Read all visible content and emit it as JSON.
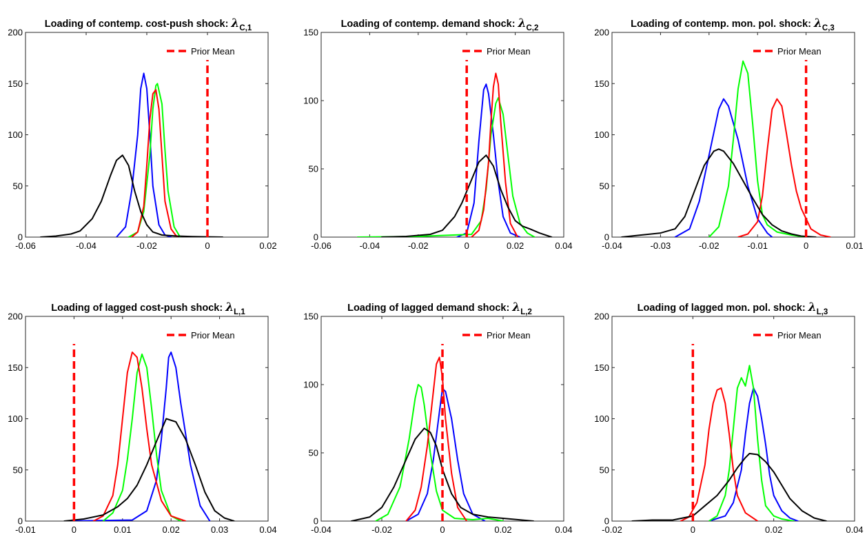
{
  "chart_data": [
    {
      "type": "line",
      "title": "Loading of contemp. cost-push shock: ",
      "title_symbol": "λ",
      "title_subscript": "C,1",
      "xlim": [
        -0.06,
        0.02
      ],
      "ylim": [
        0,
        200
      ],
      "xticks": [
        -0.06,
        -0.04,
        -0.02,
        0,
        0.02
      ],
      "yticks": [
        0,
        50,
        100,
        150,
        200
      ],
      "xtick_labels": [
        "-0.06",
        "-0.04",
        "-0.02",
        "0",
        "0.02"
      ],
      "ytick_labels": [
        "0",
        "50",
        "100",
        "150",
        "200"
      ],
      "legend": {
        "label": "Prior Mean",
        "placement": "top-right"
      },
      "prior_mean": {
        "x": 0,
        "color": "#ff0000",
        "style": "dashed"
      },
      "series": [
        {
          "color": "#0000ff",
          "x": [
            -0.03,
            -0.027,
            -0.025,
            -0.023,
            -0.022,
            -0.021,
            -0.02,
            -0.019,
            -0.018,
            -0.016,
            -0.014,
            -0.012
          ],
          "y": [
            0,
            10,
            45,
            100,
            145,
            160,
            145,
            100,
            50,
            12,
            2,
            0
          ]
        },
        {
          "color": "#00ff00",
          "x": [
            -0.026,
            -0.023,
            -0.021,
            -0.019,
            -0.018,
            -0.017,
            -0.0165,
            -0.015,
            -0.014,
            -0.013,
            -0.011,
            -0.009
          ],
          "y": [
            0,
            5,
            25,
            80,
            125,
            148,
            150,
            130,
            85,
            45,
            10,
            0
          ]
        },
        {
          "color": "#ff0000",
          "x": [
            -0.025,
            -0.023,
            -0.021,
            -0.02,
            -0.019,
            -0.018,
            -0.017,
            -0.016,
            -0.015,
            -0.014,
            -0.012,
            -0.01
          ],
          "y": [
            0,
            5,
            30,
            70,
            115,
            140,
            144,
            125,
            80,
            35,
            8,
            0
          ]
        },
        {
          "color": "#000000",
          "x": [
            -0.055,
            -0.05,
            -0.045,
            -0.042,
            -0.038,
            -0.035,
            -0.032,
            -0.03,
            -0.028,
            -0.026,
            -0.024,
            -0.022,
            -0.02,
            -0.018,
            -0.015,
            -0.01,
            -0.005,
            0.005
          ],
          "y": [
            0,
            1,
            3,
            6,
            18,
            35,
            60,
            75,
            80,
            70,
            45,
            25,
            12,
            5,
            2,
            1,
            0.5,
            0
          ]
        }
      ]
    },
    {
      "type": "line",
      "title": "Loading of contemp. demand shock: ",
      "title_symbol": "λ",
      "title_subscript": "C,2",
      "xlim": [
        -0.06,
        0.04
      ],
      "ylim": [
        0,
        150
      ],
      "xticks": [
        -0.06,
        -0.04,
        -0.02,
        0,
        0.02,
        0.04
      ],
      "yticks": [
        0,
        50,
        100,
        150
      ],
      "xtick_labels": [
        "-0.06",
        "-0.04",
        "-0.02",
        "0",
        "0.02",
        "0.04"
      ],
      "ytick_labels": [
        "0",
        "50",
        "100",
        "150"
      ],
      "legend": {
        "label": "Prior Mean",
        "placement": "top-right"
      },
      "prior_mean": {
        "x": 0,
        "color": "#ff0000",
        "style": "dashed"
      },
      "series": [
        {
          "color": "#0000ff",
          "x": [
            -0.004,
            0.0,
            0.003,
            0.005,
            0.007,
            0.008,
            0.009,
            0.011,
            0.013,
            0.015,
            0.018,
            0.022
          ],
          "y": [
            0,
            3,
            25,
            70,
            108,
            112,
            105,
            75,
            40,
            15,
            3,
            0
          ]
        },
        {
          "color": "#00ff00",
          "x": [
            -0.045,
            -0.02,
            0.002,
            0.006,
            0.008,
            0.01,
            0.012,
            0.013,
            0.015,
            0.017,
            0.019,
            0.022,
            0.025,
            0.028
          ],
          "y": [
            0,
            0.5,
            2,
            12,
            35,
            75,
            98,
            102,
            90,
            60,
            30,
            10,
            3,
            0
          ]
        },
        {
          "color": "#ff0000",
          "x": [
            0.002,
            0.005,
            0.007,
            0.009,
            0.01,
            0.011,
            0.012,
            0.013,
            0.014,
            0.016,
            0.018,
            0.021
          ],
          "y": [
            0,
            5,
            20,
            55,
            85,
            110,
            120,
            112,
            85,
            40,
            10,
            0
          ]
        },
        {
          "color": "#000000",
          "x": [
            -0.035,
            -0.025,
            -0.015,
            -0.01,
            -0.005,
            -0.002,
            0.002,
            0.005,
            0.008,
            0.011,
            0.014,
            0.017,
            0.02,
            0.023,
            0.026,
            0.03,
            0.035
          ],
          "y": [
            0,
            0.5,
            2,
            5,
            15,
            25,
            42,
            55,
            60,
            52,
            35,
            22,
            12,
            8,
            6,
            3,
            0
          ]
        }
      ]
    },
    {
      "type": "line",
      "title": "Loading of contemp. mon. pol. shock: ",
      "title_symbol": "λ",
      "title_subscript": "C,3",
      "xlim": [
        -0.04,
        0.01
      ],
      "ylim": [
        0,
        200
      ],
      "xticks": [
        -0.04,
        -0.03,
        -0.02,
        -0.01,
        0,
        0.01
      ],
      "yticks": [
        0,
        50,
        100,
        150,
        200
      ],
      "xtick_labels": [
        "-0.04",
        "-0.03",
        "-0.02",
        "-0.01",
        "0",
        "0.01"
      ],
      "ytick_labels": [
        "0",
        "50",
        "100",
        "150",
        "200"
      ],
      "legend": {
        "label": "Prior Mean",
        "placement": "top-right"
      },
      "prior_mean": {
        "x": 0,
        "color": "#ff0000",
        "style": "dashed"
      },
      "series": [
        {
          "color": "#0000ff",
          "x": [
            -0.027,
            -0.024,
            -0.022,
            -0.02,
            -0.018,
            -0.017,
            -0.016,
            -0.014,
            -0.012,
            -0.01,
            -0.008,
            -0.007
          ],
          "y": [
            0,
            8,
            35,
            80,
            125,
            135,
            128,
            95,
            50,
            18,
            4,
            0
          ]
        },
        {
          "color": "#00ff00",
          "x": [
            -0.02,
            -0.018,
            -0.016,
            -0.015,
            -0.014,
            -0.013,
            -0.012,
            -0.011,
            -0.01,
            -0.009,
            -0.008,
            -0.006,
            -0.003,
            0.0
          ],
          "y": [
            0,
            10,
            50,
            95,
            145,
            172,
            160,
            110,
            55,
            22,
            12,
            5,
            2,
            0
          ]
        },
        {
          "color": "#ff0000",
          "x": [
            -0.014,
            -0.012,
            -0.01,
            -0.009,
            -0.008,
            -0.007,
            -0.006,
            -0.005,
            -0.004,
            -0.003,
            -0.002,
            -0.001,
            0.001,
            0.003,
            0.005
          ],
          "y": [
            0,
            3,
            15,
            40,
            85,
            125,
            135,
            128,
            100,
            70,
            45,
            28,
            8,
            2,
            0
          ]
        },
        {
          "color": "#000000",
          "x": [
            -0.038,
            -0.034,
            -0.03,
            -0.027,
            -0.025,
            -0.023,
            -0.021,
            -0.019,
            -0.018,
            -0.017,
            -0.015,
            -0.013,
            -0.011,
            -0.009,
            -0.007,
            -0.005,
            -0.003,
            -0.001,
            0.002
          ],
          "y": [
            0,
            2,
            4,
            8,
            20,
            45,
            70,
            84,
            86,
            84,
            72,
            55,
            38,
            22,
            12,
            6,
            3,
            1,
            0
          ]
        }
      ]
    },
    {
      "type": "line",
      "title": "Loading of lagged cost-push shock: ",
      "title_symbol": "λ",
      "title_subscript": "L,1",
      "xlim": [
        -0.01,
        0.04
      ],
      "ylim": [
        0,
        200
      ],
      "xticks": [
        -0.01,
        0,
        0.01,
        0.02,
        0.03,
        0.04
      ],
      "yticks": [
        0,
        50,
        100,
        150,
        200
      ],
      "xtick_labels": [
        "-0.01",
        "0",
        "0.01",
        "0.02",
        "0.03",
        "0.04"
      ],
      "ytick_labels": [
        "0",
        "50",
        "100",
        "150",
        "200"
      ],
      "legend": {
        "label": "Prior Mean",
        "placement": "top-right"
      },
      "prior_mean": {
        "x": 0,
        "color": "#ff0000",
        "style": "dashed"
      },
      "series": [
        {
          "color": "#0000ff",
          "x": [
            -0.001,
            0.005,
            0.012,
            0.015,
            0.017,
            0.018,
            0.019,
            0.0195,
            0.02,
            0.021,
            0.022,
            0.024,
            0.026,
            0.028
          ],
          "y": [
            0,
            0.5,
            1,
            10,
            40,
            80,
            130,
            160,
            165,
            150,
            115,
            55,
            15,
            0
          ]
        },
        {
          "color": "#00ff00",
          "x": [
            0.006,
            0.008,
            0.01,
            0.011,
            0.012,
            0.013,
            0.014,
            0.015,
            0.016,
            0.017,
            0.018,
            0.02,
            0.022
          ],
          "y": [
            0,
            8,
            30,
            60,
            100,
            145,
            163,
            150,
            110,
            65,
            30,
            5,
            0
          ]
        },
        {
          "color": "#ff0000",
          "x": [
            0.004,
            0.006,
            0.008,
            0.009,
            0.01,
            0.011,
            0.012,
            0.013,
            0.014,
            0.015,
            0.016,
            0.018,
            0.02,
            0.023
          ],
          "y": [
            0,
            5,
            25,
            55,
            100,
            145,
            165,
            160,
            130,
            90,
            55,
            20,
            5,
            0
          ]
        },
        {
          "color": "#000000",
          "x": [
            -0.002,
            0.002,
            0.006,
            0.009,
            0.011,
            0.013,
            0.015,
            0.017,
            0.019,
            0.021,
            0.023,
            0.025,
            0.027,
            0.029,
            0.031,
            0.033
          ],
          "y": [
            0,
            2,
            6,
            14,
            22,
            35,
            55,
            78,
            100,
            97,
            80,
            55,
            28,
            10,
            3,
            0
          ]
        }
      ]
    },
    {
      "type": "line",
      "title": "Loading of lagged demand shock: ",
      "title_symbol": "λ",
      "title_subscript": "L,2",
      "xlim": [
        -0.04,
        0.04
      ],
      "ylim": [
        0,
        150
      ],
      "xticks": [
        -0.04,
        -0.02,
        0,
        0.02,
        0.04
      ],
      "yticks": [
        0,
        50,
        100,
        150
      ],
      "xtick_labels": [
        "-0.04",
        "-0.02",
        "0",
        "0.02",
        "0.04"
      ],
      "ytick_labels": [
        "0",
        "50",
        "100",
        "150"
      ],
      "legend": {
        "label": "Prior Mean",
        "placement": "top-right"
      },
      "prior_mean": {
        "x": 0,
        "color": "#ff0000",
        "style": "dashed"
      },
      "series": [
        {
          "color": "#0000ff",
          "x": [
            -0.012,
            -0.008,
            -0.005,
            -0.003,
            -0.001,
            0.0,
            0.001,
            0.003,
            0.005,
            0.007,
            0.01,
            0.014
          ],
          "y": [
            0,
            5,
            20,
            45,
            80,
            97,
            95,
            75,
            45,
            20,
            5,
            0
          ]
        },
        {
          "color": "#00ff00",
          "x": [
            -0.022,
            -0.018,
            -0.014,
            -0.011,
            -0.009,
            -0.008,
            -0.007,
            -0.006,
            -0.004,
            -0.002,
            0.0,
            0.004,
            0.01,
            0.015,
            0.02
          ],
          "y": [
            0,
            5,
            25,
            60,
            90,
            100,
            98,
            85,
            50,
            22,
            8,
            2,
            1,
            2,
            0
          ]
        },
        {
          "color": "#ff0000",
          "x": [
            -0.012,
            -0.009,
            -0.007,
            -0.005,
            -0.003,
            -0.002,
            -0.001,
            0.0,
            0.001,
            0.003,
            0.005,
            0.008
          ],
          "y": [
            0,
            8,
            25,
            55,
            95,
            115,
            120,
            105,
            75,
            35,
            10,
            0
          ]
        },
        {
          "color": "#000000",
          "x": [
            -0.03,
            -0.024,
            -0.02,
            -0.016,
            -0.012,
            -0.009,
            -0.006,
            -0.004,
            -0.002,
            0.0,
            0.003,
            0.006,
            0.01,
            0.015,
            0.02,
            0.025,
            0.03
          ],
          "y": [
            0,
            3,
            10,
            25,
            45,
            60,
            68,
            65,
            55,
            38,
            20,
            10,
            5,
            3,
            2,
            1,
            0
          ]
        }
      ]
    },
    {
      "type": "line",
      "title": "Loading of lagged mon. pol. shock: ",
      "title_symbol": "λ",
      "title_subscript": "L,3",
      "xlim": [
        -0.02,
        0.04
      ],
      "ylim": [
        0,
        200
      ],
      "xticks": [
        -0.02,
        0,
        0.02,
        0.04
      ],
      "yticks": [
        0,
        50,
        100,
        150,
        200
      ],
      "xtick_labels": [
        "-0.02",
        "0",
        "0.02",
        "0.04"
      ],
      "ytick_labels": [
        "0",
        "50",
        "100",
        "150",
        "200"
      ],
      "legend": {
        "label": "Prior Mean",
        "placement": "top-right"
      },
      "prior_mean": {
        "x": 0,
        "color": "#ff0000",
        "style": "dashed"
      },
      "series": [
        {
          "color": "#0000ff",
          "x": [
            0.004,
            0.008,
            0.01,
            0.012,
            0.013,
            0.014,
            0.015,
            0.016,
            0.017,
            0.018,
            0.019,
            0.02,
            0.022,
            0.024,
            0.026
          ],
          "y": [
            0,
            5,
            18,
            50,
            85,
            115,
            130,
            122,
            100,
            75,
            45,
            25,
            10,
            3,
            0
          ]
        },
        {
          "color": "#00ff00",
          "x": [
            0.004,
            0.006,
            0.008,
            0.009,
            0.01,
            0.011,
            0.012,
            0.013,
            0.014,
            0.015,
            0.016,
            0.017,
            0.018,
            0.02,
            0.022,
            0.025
          ],
          "y": [
            0,
            5,
            25,
            50,
            90,
            130,
            140,
            132,
            152,
            130,
            80,
            40,
            15,
            5,
            2,
            0
          ]
        },
        {
          "color": "#ff0000",
          "x": [
            -0.003,
            -0.001,
            0.001,
            0.003,
            0.004,
            0.005,
            0.006,
            0.007,
            0.008,
            0.009,
            0.01,
            0.011,
            0.013,
            0.016
          ],
          "y": [
            0,
            4,
            18,
            55,
            90,
            115,
            128,
            130,
            115,
            85,
            50,
            25,
            8,
            0
          ]
        },
        {
          "color": "#000000",
          "x": [
            -0.015,
            -0.01,
            -0.005,
            0.0,
            0.003,
            0.006,
            0.009,
            0.011,
            0.013,
            0.014,
            0.016,
            0.018,
            0.02,
            0.022,
            0.024,
            0.027,
            0.03,
            0.033
          ],
          "y": [
            0,
            1,
            1,
            5,
            15,
            25,
            40,
            52,
            62,
            66,
            65,
            58,
            48,
            35,
            22,
            10,
            3,
            0
          ]
        }
      ]
    }
  ]
}
